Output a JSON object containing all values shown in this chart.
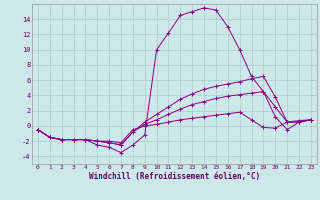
{
  "xlabel": "Windchill (Refroidissement éolien,°C)",
  "background_color": "#cce8e8",
  "grid_color": "#aacccc",
  "xlim": [
    -0.5,
    23.5
  ],
  "ylim": [
    -5.0,
    16.0
  ],
  "xticks": [
    0,
    1,
    2,
    3,
    4,
    5,
    6,
    7,
    8,
    9,
    10,
    11,
    12,
    13,
    14,
    15,
    16,
    17,
    18,
    19,
    20,
    21,
    22,
    23
  ],
  "yticks": [
    -4,
    -2,
    0,
    2,
    4,
    6,
    8,
    10,
    12,
    14
  ],
  "series": [
    {
      "x": [
        0,
        1,
        2,
        3,
        4,
        5,
        6,
        7,
        8,
        9,
        10,
        11,
        12,
        13,
        14,
        15,
        16,
        17,
        18,
        19,
        20,
        21,
        22,
        23
      ],
      "y": [
        -0.5,
        -1.5,
        -1.8,
        -1.8,
        -1.8,
        -2.5,
        -2.8,
        -3.5,
        -2.5,
        -1.2,
        10.0,
        12.2,
        14.5,
        15.0,
        15.5,
        15.2,
        13.0,
        10.0,
        6.5,
        4.5,
        1.2,
        -0.5,
        0.5,
        0.8
      ]
    },
    {
      "x": [
        0,
        1,
        2,
        3,
        4,
        5,
        6,
        7,
        8,
        9,
        10,
        11,
        12,
        13,
        14,
        15,
        16,
        17,
        18,
        19,
        20,
        21,
        22,
        23
      ],
      "y": [
        -0.5,
        -1.5,
        -1.8,
        -1.8,
        -1.8,
        -2.0,
        -2.2,
        -2.5,
        -0.8,
        0.5,
        1.5,
        2.5,
        3.5,
        4.2,
        4.8,
        5.2,
        5.5,
        5.8,
        6.2,
        6.5,
        3.8,
        0.5,
        0.5,
        0.8
      ]
    },
    {
      "x": [
        0,
        1,
        2,
        3,
        4,
        5,
        6,
        7,
        8,
        9,
        10,
        11,
        12,
        13,
        14,
        15,
        16,
        17,
        18,
        19,
        20,
        21,
        22,
        23
      ],
      "y": [
        -0.5,
        -1.5,
        -1.8,
        -1.8,
        -1.8,
        -2.0,
        -2.2,
        -2.5,
        -0.8,
        0.2,
        0.8,
        1.5,
        2.2,
        2.8,
        3.2,
        3.6,
        3.9,
        4.1,
        4.3,
        4.5,
        2.5,
        0.5,
        0.5,
        0.8
      ]
    },
    {
      "x": [
        0,
        1,
        2,
        3,
        4,
        5,
        6,
        7,
        8,
        9,
        10,
        11,
        12,
        13,
        14,
        15,
        16,
        17,
        18,
        19,
        20,
        21,
        22,
        23
      ],
      "y": [
        -0.5,
        -1.5,
        -1.8,
        -1.8,
        -1.8,
        -2.0,
        -2.0,
        -2.2,
        -0.5,
        0.0,
        0.2,
        0.5,
        0.8,
        1.0,
        1.2,
        1.4,
        1.6,
        1.8,
        0.8,
        -0.2,
        -0.3,
        0.5,
        0.7,
        0.8
      ]
    }
  ]
}
